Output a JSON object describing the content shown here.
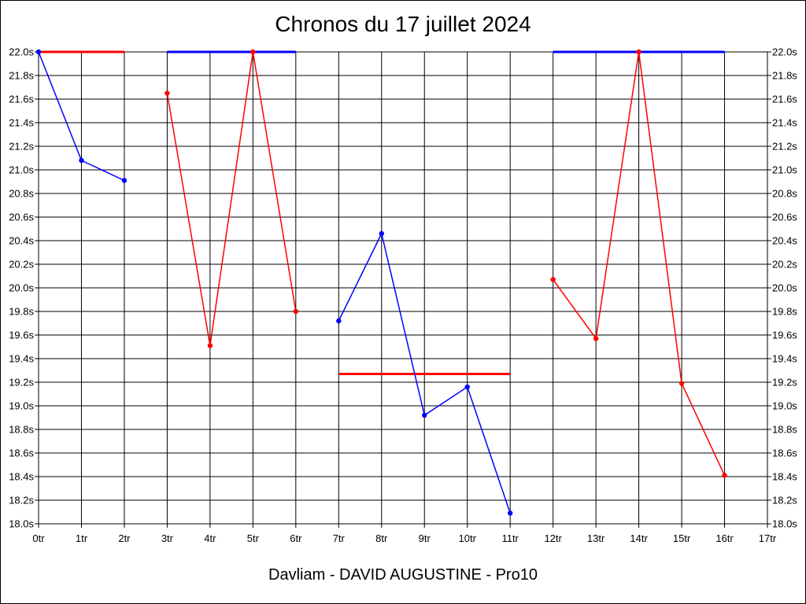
{
  "chart_data": {
    "type": "line",
    "title": "Chronos du 17 juillet 2024",
    "footer": "Davliam - DAVID AUGUSTINE - Pro10",
    "x_tick_labels": [
      "0tr",
      "1tr",
      "2tr",
      "3tr",
      "4tr",
      "5tr",
      "6tr",
      "7tr",
      "8tr",
      "9tr",
      "10tr",
      "11tr",
      "12tr",
      "13tr",
      "14tr",
      "15tr",
      "16tr",
      "17tr"
    ],
    "y_tick_labels": [
      "18.0s",
      "18.2s",
      "18.4s",
      "18.6s",
      "18.8s",
      "19.0s",
      "19.2s",
      "19.4s",
      "19.6s",
      "19.8s",
      "20.0s",
      "20.2s",
      "20.4s",
      "20.6s",
      "20.8s",
      "21.0s",
      "21.2s",
      "21.4s",
      "21.6s",
      "21.8s",
      "22.0s"
    ],
    "xlim": [
      0,
      17
    ],
    "ylim": [
      18.0,
      22.0
    ],
    "grid": true,
    "colors": {
      "red": "#ff0000",
      "blue": "#0000ff"
    },
    "series": [
      {
        "color": "#0000ff",
        "x": [
          0,
          1,
          2
        ],
        "y": [
          22.0,
          21.08,
          20.91
        ]
      },
      {
        "color": "#ff0000",
        "x": [
          3,
          4,
          5,
          6
        ],
        "y": [
          21.65,
          19.51,
          22.0,
          19.8
        ]
      },
      {
        "color": "#0000ff",
        "x": [
          7,
          8,
          9,
          10,
          11
        ],
        "y": [
          19.72,
          20.46,
          18.92,
          19.16,
          18.09
        ]
      },
      {
        "color": "#ff0000",
        "x": [
          12,
          13,
          14,
          15,
          16
        ],
        "y": [
          20.07,
          19.57,
          22.0,
          19.19,
          18.41
        ]
      }
    ],
    "reference_lines": [
      {
        "color": "#ff0000",
        "x_start": 0,
        "x_end": 2,
        "y": 22.0
      },
      {
        "color": "#0000ff",
        "x_start": 3,
        "x_end": 6,
        "y": 22.0
      },
      {
        "color": "#ff0000",
        "x_start": 7,
        "x_end": 11,
        "y": 19.27
      },
      {
        "color": "#0000ff",
        "x_start": 12,
        "x_end": 16,
        "y": 22.0
      }
    ]
  }
}
